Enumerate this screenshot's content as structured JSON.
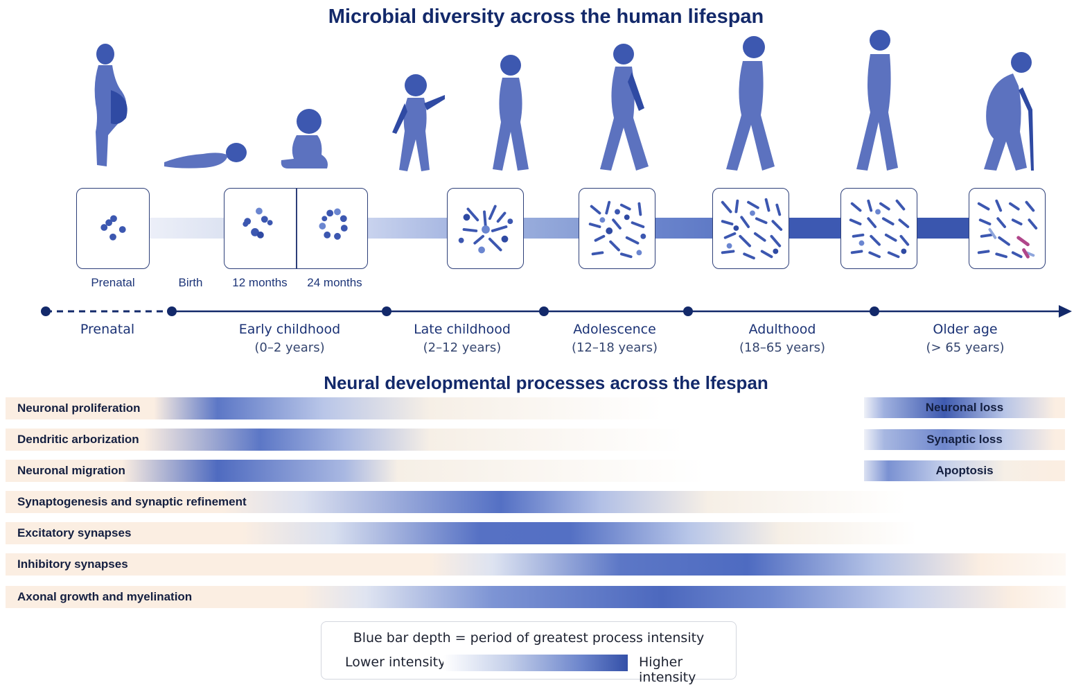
{
  "title": "Microbial diversity across the human lifespan",
  "subtitle": "Neural developmental processes across the lfespan",
  "colors": {
    "navy": "#13296a",
    "blue_dark": "#3450a8",
    "blue_mid": "#5c77c6",
    "blue_light": "#d7def1",
    "peach": "#fbeee2",
    "magenta": "#b0468a"
  },
  "figures": [
    {
      "name": "pregnant-woman-figure"
    },
    {
      "name": "newborn-lying-figure"
    },
    {
      "name": "seated-baby-figure"
    },
    {
      "name": "toddler-figure"
    },
    {
      "name": "child-figure"
    },
    {
      "name": "adolescent-figure"
    },
    {
      "name": "adult-figure"
    },
    {
      "name": "tall-adult-figure"
    },
    {
      "name": "elderly-cane-figure"
    }
  ],
  "stage_labels": [
    "Prenatal",
    "Birth",
    "12 months",
    "24 months"
  ],
  "periods": [
    {
      "name": "Prenatal",
      "range": ""
    },
    {
      "name": "Early childhood",
      "range": "(0–2 years)"
    },
    {
      "name": "Late childhood",
      "range": "(2–12 years)"
    },
    {
      "name": "Adolescence",
      "range": "(12–18 years)"
    },
    {
      "name": "Adulthood",
      "range": "(18–65 years)"
    },
    {
      "name": "Older age",
      "range": "(> 65 years)"
    }
  ],
  "processes": [
    {
      "label": "Neuronal proliferation",
      "peak_period": "Early childhood"
    },
    {
      "label": "Dendritic arborization",
      "peak_period": "Early childhood"
    },
    {
      "label": "Neuronal migration",
      "peak_period": "Early childhood"
    },
    {
      "label": "Synaptogenesis and synaptic refinement",
      "peak_period": "Late childhood"
    },
    {
      "label": "Excitatory synapses",
      "peak_period": "Late childhood"
    },
    {
      "label": "Inhibitory synapses",
      "peak_period": "Adolescence"
    },
    {
      "label": "Axonal growth and myelination",
      "peak_period": "Adolescence"
    }
  ],
  "late_processes": [
    "Neuronal loss",
    "Synaptic loss",
    "Apoptosis"
  ],
  "legend": {
    "caption": "Blue bar depth = period of greatest process intensity",
    "low": "Lower intensity",
    "high": "Higher intensity"
  }
}
